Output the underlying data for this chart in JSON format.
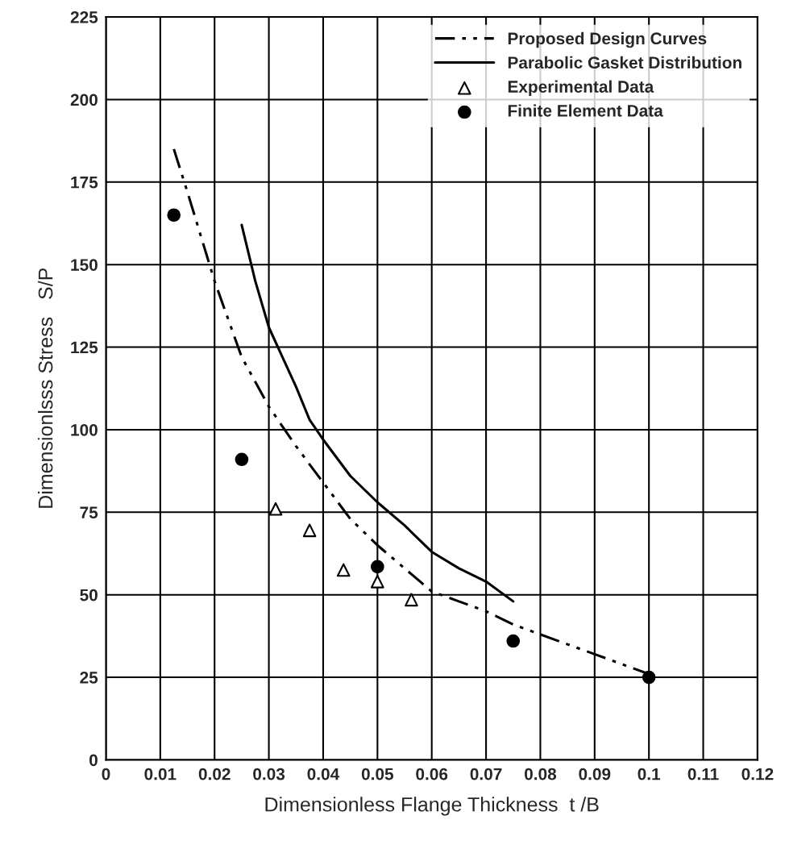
{
  "chart_data": {
    "type": "line",
    "xlabel": "Dimensionless Flange Thickness  t /B",
    "ylabel": "Dimensionlsss Stress   S/P",
    "xlim": [
      0,
      0.12
    ],
    "ylim": [
      0,
      225
    ],
    "xticks": [
      0,
      0.01,
      0.02,
      0.03,
      0.04,
      0.05,
      0.06,
      0.07,
      0.08,
      0.09,
      0.1,
      0.11,
      0.12
    ],
    "yticks": [
      0,
      25,
      50,
      75,
      100,
      125,
      150,
      175,
      200,
      225
    ],
    "grid": true,
    "legend": "top right",
    "series": [
      {
        "name": "Proposed Design Curves",
        "line_style": "dashdot",
        "color": "#000000",
        "x": [
          0.0125,
          0.015,
          0.02,
          0.025,
          0.03,
          0.035,
          0.04,
          0.045,
          0.05,
          0.055,
          0.06,
          0.065,
          0.07,
          0.075,
          0.08,
          0.085,
          0.09,
          0.095,
          0.1
        ],
        "values": [
          185,
          172,
          145,
          122,
          107,
          95,
          84,
          73,
          65,
          58,
          51,
          48,
          45,
          41,
          38,
          35,
          32,
          29,
          26
        ]
      },
      {
        "name": "Parabolic Gasket Distribution",
        "line_style": "solid",
        "color": "#000000",
        "x": [
          0.025,
          0.0275,
          0.03,
          0.0325,
          0.035,
          0.0375,
          0.04,
          0.045,
          0.05,
          0.055,
          0.06,
          0.065,
          0.07,
          0.075
        ],
        "values": [
          162,
          145,
          131,
          122,
          113,
          103,
          97,
          86,
          78,
          71,
          63,
          58,
          54,
          48
        ]
      },
      {
        "name": "Experimental Data",
        "type": "scatter",
        "marker": "triangle",
        "color": "#000000",
        "x": [
          0.03125,
          0.0375,
          0.04375,
          0.05,
          0.05625
        ],
        "values": [
          76,
          69.5,
          57.5,
          54,
          48.5
        ]
      },
      {
        "name": "Finite Element Data",
        "type": "scatter",
        "marker": "circle",
        "color": "#000000",
        "x": [
          0.0125,
          0.025,
          0.05,
          0.075,
          0.1
        ],
        "values": [
          165,
          91,
          58.5,
          36,
          25
        ]
      }
    ]
  }
}
